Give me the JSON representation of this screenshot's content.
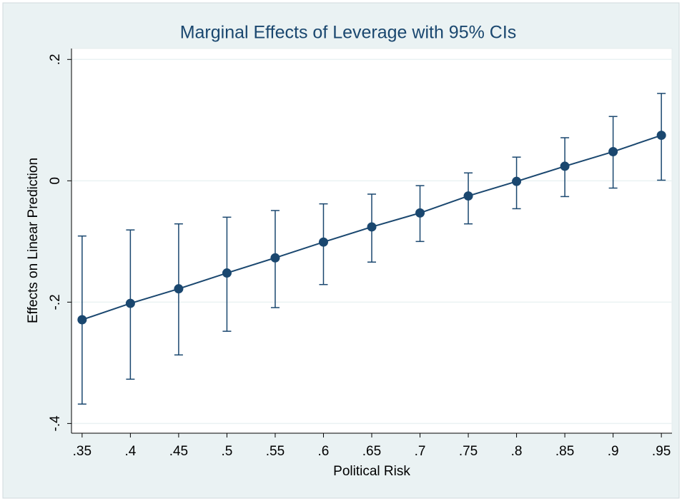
{
  "chart_data": {
    "type": "line",
    "title": "Marginal Effects of Leverage with 95% CIs",
    "x_label": "Political Risk",
    "y_label": "Effects on Linear Prediction",
    "x": [
      0.35,
      0.4,
      0.45,
      0.5,
      0.55,
      0.6,
      0.65,
      0.7,
      0.75,
      0.8,
      0.85,
      0.9,
      0.95
    ],
    "values": [
      -0.229,
      -0.202,
      -0.178,
      -0.152,
      -0.127,
      -0.101,
      -0.076,
      -0.053,
      -0.025,
      -0.001,
      0.024,
      0.048,
      0.075
    ],
    "ci_lower": [
      -0.368,
      -0.327,
      -0.287,
      -0.248,
      -0.209,
      -0.171,
      -0.134,
      -0.1,
      -0.071,
      -0.046,
      -0.026,
      -0.012,
      0.001
    ],
    "ci_upper": [
      -0.091,
      -0.081,
      -0.071,
      -0.06,
      -0.049,
      -0.038,
      -0.022,
      -0.008,
      0.013,
      0.039,
      0.071,
      0.106,
      0.144
    ],
    "color": "#1a476f",
    "xlim": [
      0.339,
      0.961
    ],
    "ylim": [
      -0.416,
      0.218
    ],
    "xticks": [
      {
        "value": 0.35,
        "label": ".35"
      },
      {
        "value": 0.4,
        "label": ".4"
      },
      {
        "value": 0.45,
        "label": ".45"
      },
      {
        "value": 0.5,
        "label": ".5"
      },
      {
        "value": 0.55,
        "label": ".55"
      },
      {
        "value": 0.6,
        "label": ".6"
      },
      {
        "value": 0.65,
        "label": ".65"
      },
      {
        "value": 0.7,
        "label": ".7"
      },
      {
        "value": 0.75,
        "label": ".75"
      },
      {
        "value": 0.8,
        "label": ".8"
      },
      {
        "value": 0.85,
        "label": ".85"
      },
      {
        "value": 0.9,
        "label": ".9"
      },
      {
        "value": 0.95,
        "label": ".95"
      }
    ],
    "yticks": [
      {
        "value": -0.4,
        "label": "-.4"
      },
      {
        "value": -0.2,
        "label": "-.2"
      },
      0,
      {
        "value": 0.2,
        "label": ".2"
      }
    ],
    "grid": true
  }
}
